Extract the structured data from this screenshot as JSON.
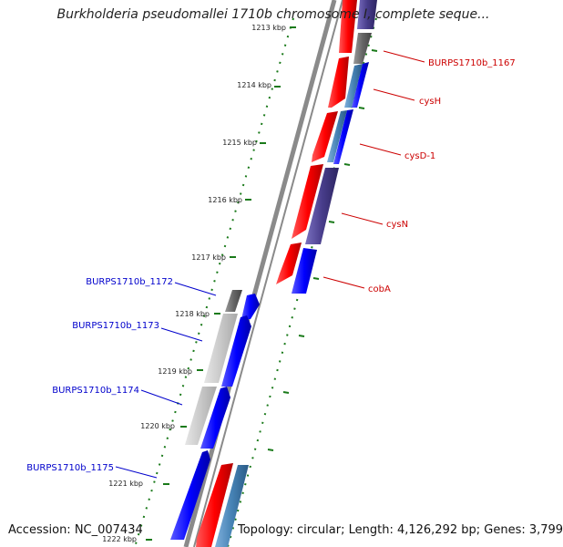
{
  "title": "Burkholderia pseudomallei 1710b chromosome I, complete seque...",
  "footer": {
    "accession": "Accession: NC_007434",
    "summary": "Topology: circular; Length: 4,126,292 bp; Genes: 3,799"
  },
  "ticks": [
    "1213 kbp",
    "1214 kbp",
    "1215 kbp",
    "1216 kbp",
    "1217 kbp",
    "1218 kbp",
    "1219 kbp",
    "1220 kbp",
    "1221 kbp",
    "1222 kbp"
  ],
  "genes_right": [
    {
      "label": "BURPS1710b_1167",
      "color": "#cc0000"
    },
    {
      "label": "cysH",
      "color": "#cc0000"
    },
    {
      "label": "cysD-1",
      "color": "#cc0000"
    },
    {
      "label": "cysN",
      "color": "#cc0000"
    },
    {
      "label": "cobA",
      "color": "#cc0000"
    }
  ],
  "genes_left": [
    {
      "label": "BURPS1710b_1172",
      "color": "#0000cc"
    },
    {
      "label": "BURPS1710b_1173",
      "color": "#0000cc"
    },
    {
      "label": "BURPS1710b_1174",
      "color": "#0000cc"
    },
    {
      "label": "BURPS1710b_1175",
      "color": "#0000cc"
    }
  ],
  "colors": {
    "backbone": "#8a8a8a",
    "tick": "#1a7a1a",
    "forward_cds": "#ff0000",
    "reverse_cds": "#0000ff",
    "rna_steel": "#4682b4",
    "slate": "#483d8b",
    "gray_block": "#666666",
    "light_block": "#c8c8c8"
  }
}
